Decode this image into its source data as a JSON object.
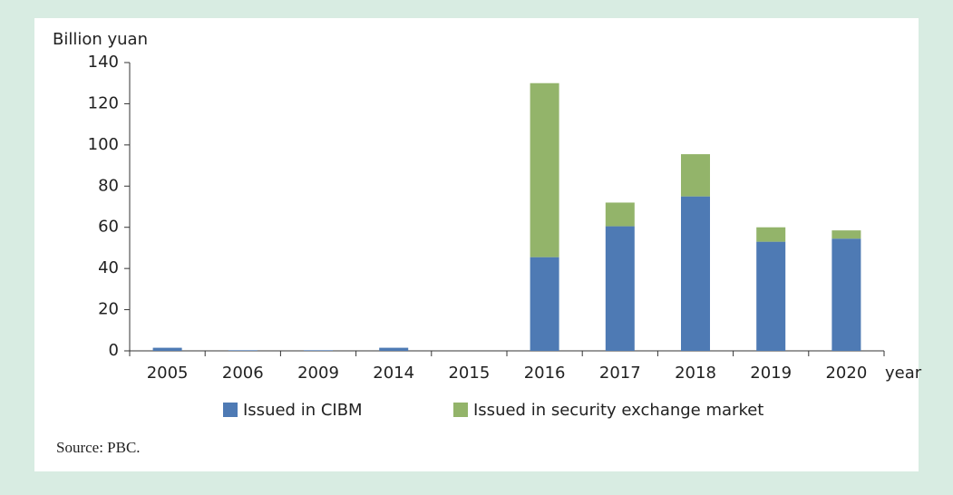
{
  "chart_data": {
    "type": "bar",
    "stacked": true,
    "y_label": "Billion yuan",
    "x_label": "year",
    "source": "Source: PBC.",
    "categories": [
      "2005",
      "2006",
      "2009",
      "2014",
      "2015",
      "2016",
      "2017",
      "2018",
      "2019",
      "2020"
    ],
    "series": [
      {
        "name": "Issued in CIBM",
        "color": "#4e7ab4",
        "values": [
          1.5,
          0.3,
          0.3,
          1.5,
          0,
          45.5,
          60.5,
          75,
          53,
          54.5
        ]
      },
      {
        "name": "Issued in security exchange market",
        "color": "#93b46a",
        "values": [
          0,
          0,
          0,
          0,
          0,
          84.5,
          11.5,
          20.5,
          7,
          4
        ]
      }
    ],
    "ylim": [
      0,
      140
    ],
    "yticks": [
      0,
      20,
      40,
      60,
      80,
      100,
      120,
      140
    ],
    "grid": false
  }
}
